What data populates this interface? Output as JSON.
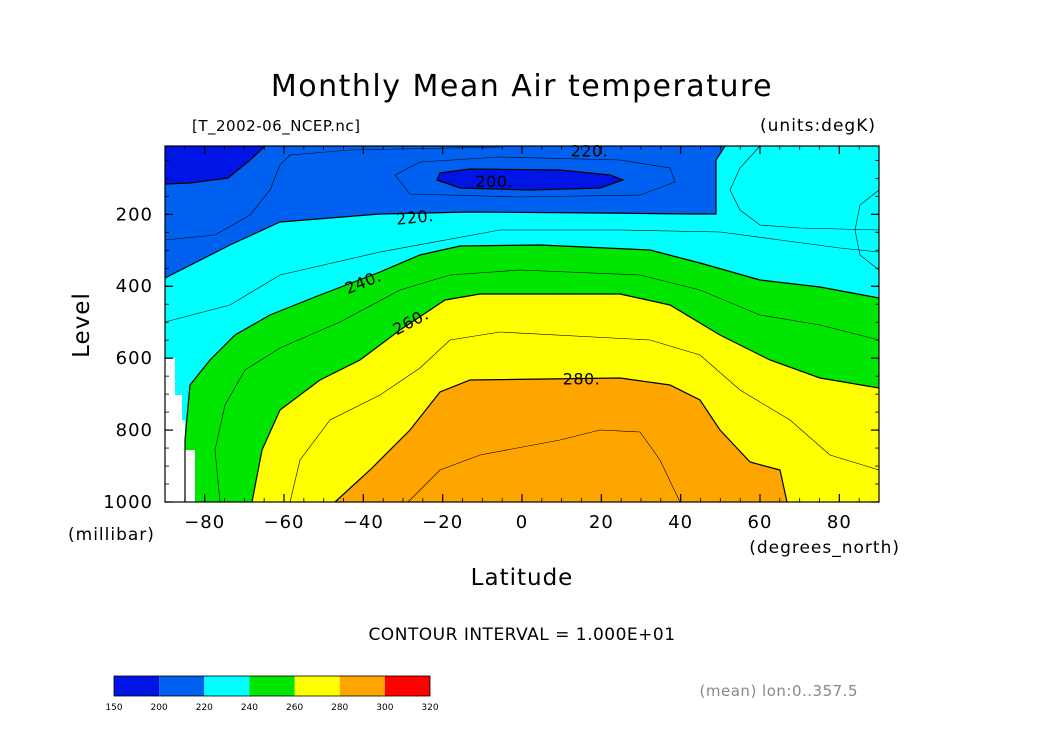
{
  "chart_data": {
    "type": "contour",
    "title": "Monthly Mean Air temperature",
    "source_file": "[T_2002-06_NCEP.nc]",
    "units_label": "(units:degK)",
    "xlabel": "Latitude",
    "x_units": "(degrees_north)",
    "ylabel": "Level",
    "y_units": "(millibar)",
    "contour_interval": "CONTOUR INTERVAL = 1.000E+01",
    "mean_note": "(mean) lon:0..357.5",
    "xlim": [
      -90,
      90
    ],
    "ylim": [
      1000,
      10
    ],
    "y_inverted": true,
    "x_ticks": [
      {
        "v": -80,
        "label": "−80"
      },
      {
        "v": -60,
        "label": "−60"
      },
      {
        "v": -40,
        "label": "−40"
      },
      {
        "v": -20,
        "label": "−20"
      },
      {
        "v": 0,
        "label": "0"
      },
      {
        "v": 20,
        "label": "20"
      },
      {
        "v": 40,
        "label": "40"
      },
      {
        "v": 60,
        "label": "60"
      },
      {
        "v": 80,
        "label": "80"
      }
    ],
    "y_ticks": [
      {
        "v": 200,
        "label": "200"
      },
      {
        "v": 400,
        "label": "400"
      },
      {
        "v": 600,
        "label": "600"
      },
      {
        "v": 800,
        "label": "800"
      },
      {
        "v": 1000,
        "label": "1000"
      }
    ],
    "contour_labels": [
      {
        "text": "220.",
        "lat": 17,
        "lev": 25,
        "angle": 0
      },
      {
        "text": "200.",
        "lat": -7,
        "lev": 110,
        "angle": 0
      },
      {
        "text": "220.",
        "lat": -27,
        "lev": 210,
        "angle": -6
      },
      {
        "text": "240.",
        "lat": -40,
        "lev": 390,
        "angle": -22
      },
      {
        "text": "260.",
        "lat": -28,
        "lev": 500,
        "angle": -28
      },
      {
        "text": "280.",
        "lat": 15,
        "lev": 660,
        "angle": 0
      }
    ],
    "colorbar": {
      "bounds": [
        "150",
        "200",
        "220",
        "240",
        "260",
        "280",
        "300",
        "320"
      ],
      "colors": [
        "#0014e6",
        "#0060f0",
        "#00ffff",
        "#00e600",
        "#ffff00",
        "#ffa500",
        "#ff0000"
      ]
    },
    "fill_colors": {
      "below_200": "#0014e6",
      "200_220": "#0060f0",
      "220_240": "#00ffff",
      "240_260": "#00e600",
      "260_280": "#ffff00",
      "280_300": "#ffa500"
    }
  }
}
